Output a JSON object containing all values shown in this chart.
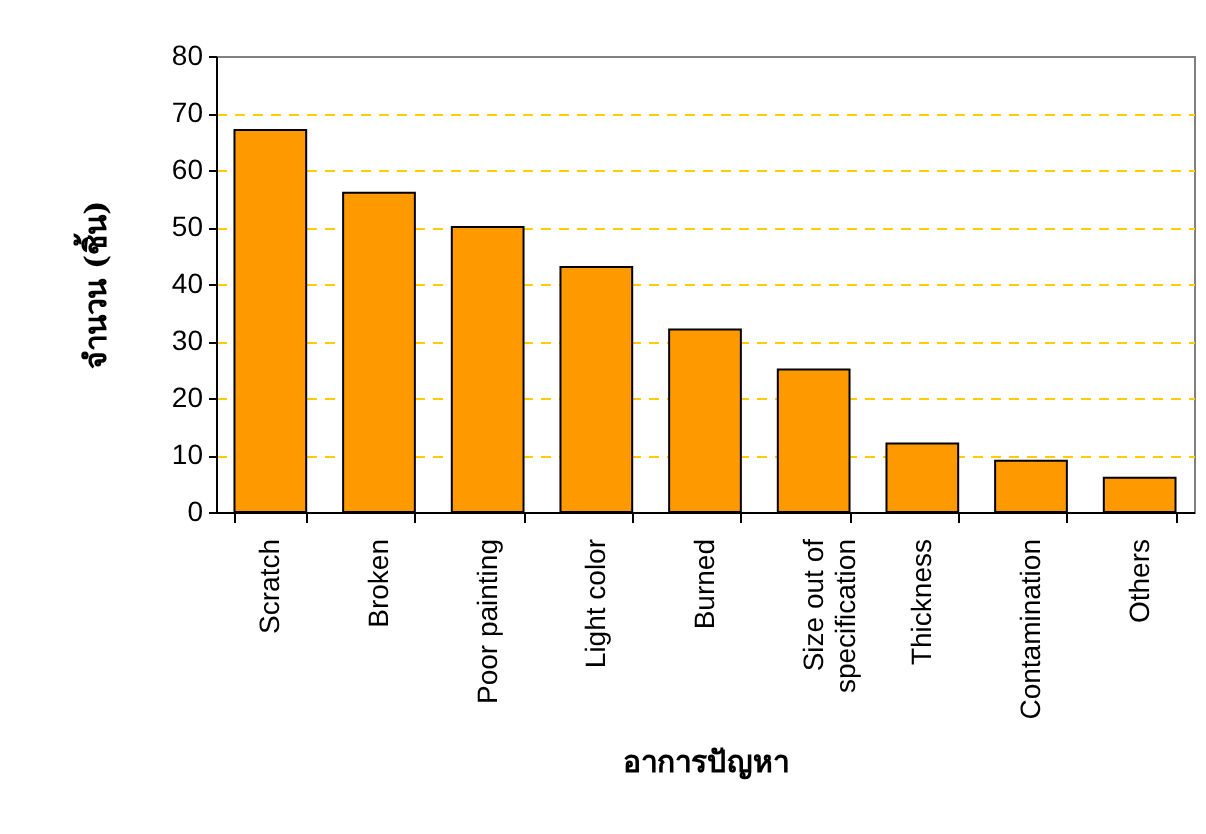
{
  "chart_data": {
    "type": "bar",
    "xlabel": "อาการปัญหา",
    "ylabel": "จำนวน (ชิ้น)",
    "categories": [
      "Scratch",
      "Broken",
      "Poor painting",
      "Light color",
      "Burned",
      "Size out of specification",
      "Thickness",
      "Contamination",
      "Others"
    ],
    "values": [
      67,
      56,
      50,
      43,
      32,
      25,
      12,
      9,
      6
    ],
    "color": "#ff9900",
    "ylim": [
      0,
      80
    ],
    "yticks": [
      0,
      10,
      20,
      30,
      40,
      50,
      60,
      70,
      80
    ],
    "grid": "y"
  }
}
